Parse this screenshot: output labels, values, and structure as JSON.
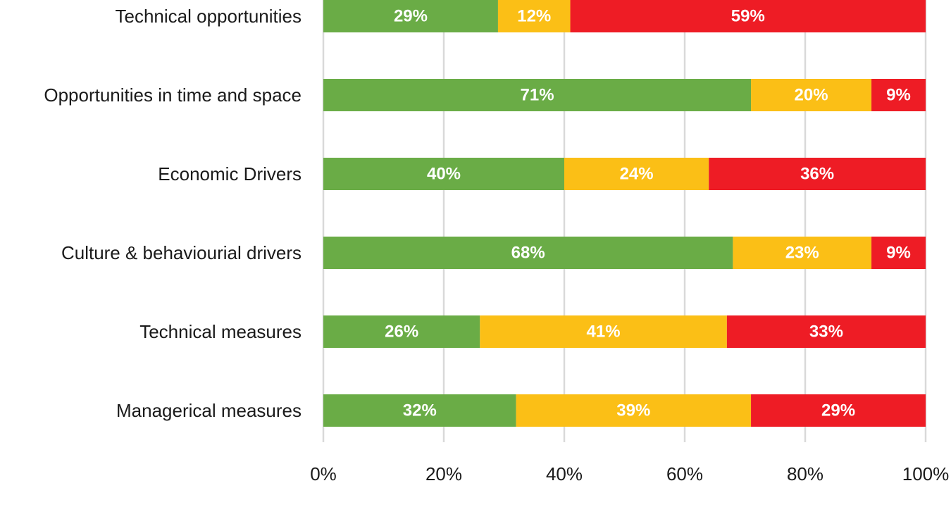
{
  "chart_data": {
    "type": "bar",
    "orientation": "horizontal",
    "stacked": true,
    "percent_stacked": true,
    "title": "",
    "xlabel": "",
    "ylabel": "",
    "xlim": [
      0,
      100
    ],
    "x_ticks": [
      "0%",
      "20%",
      "40%",
      "60%",
      "80%",
      "100%"
    ],
    "grid": true,
    "legend": "none",
    "categories": [
      "Technical opportunities",
      "Opportunities in time and space",
      "Economic Drivers",
      "Culture & behaviourial drivers",
      "Technical measures",
      "Managerical measures"
    ],
    "series": [
      {
        "color": "#6aac46",
        "values": [
          29,
          71,
          40,
          68,
          26,
          32
        ],
        "labels": [
          "29%",
          "71%",
          "40%",
          "68%",
          "26%",
          "32%"
        ]
      },
      {
        "color": "#fbbf16",
        "values": [
          12,
          20,
          24,
          23,
          41,
          39
        ],
        "labels": [
          "12%",
          "20%",
          "24%",
          "23%",
          "41%",
          "39%"
        ]
      },
      {
        "color": "#ee1c25",
        "values": [
          59,
          9,
          36,
          9,
          33,
          29
        ],
        "labels": [
          "59%",
          "9%",
          "36%",
          "9%",
          "33%",
          "29%"
        ]
      }
    ]
  }
}
